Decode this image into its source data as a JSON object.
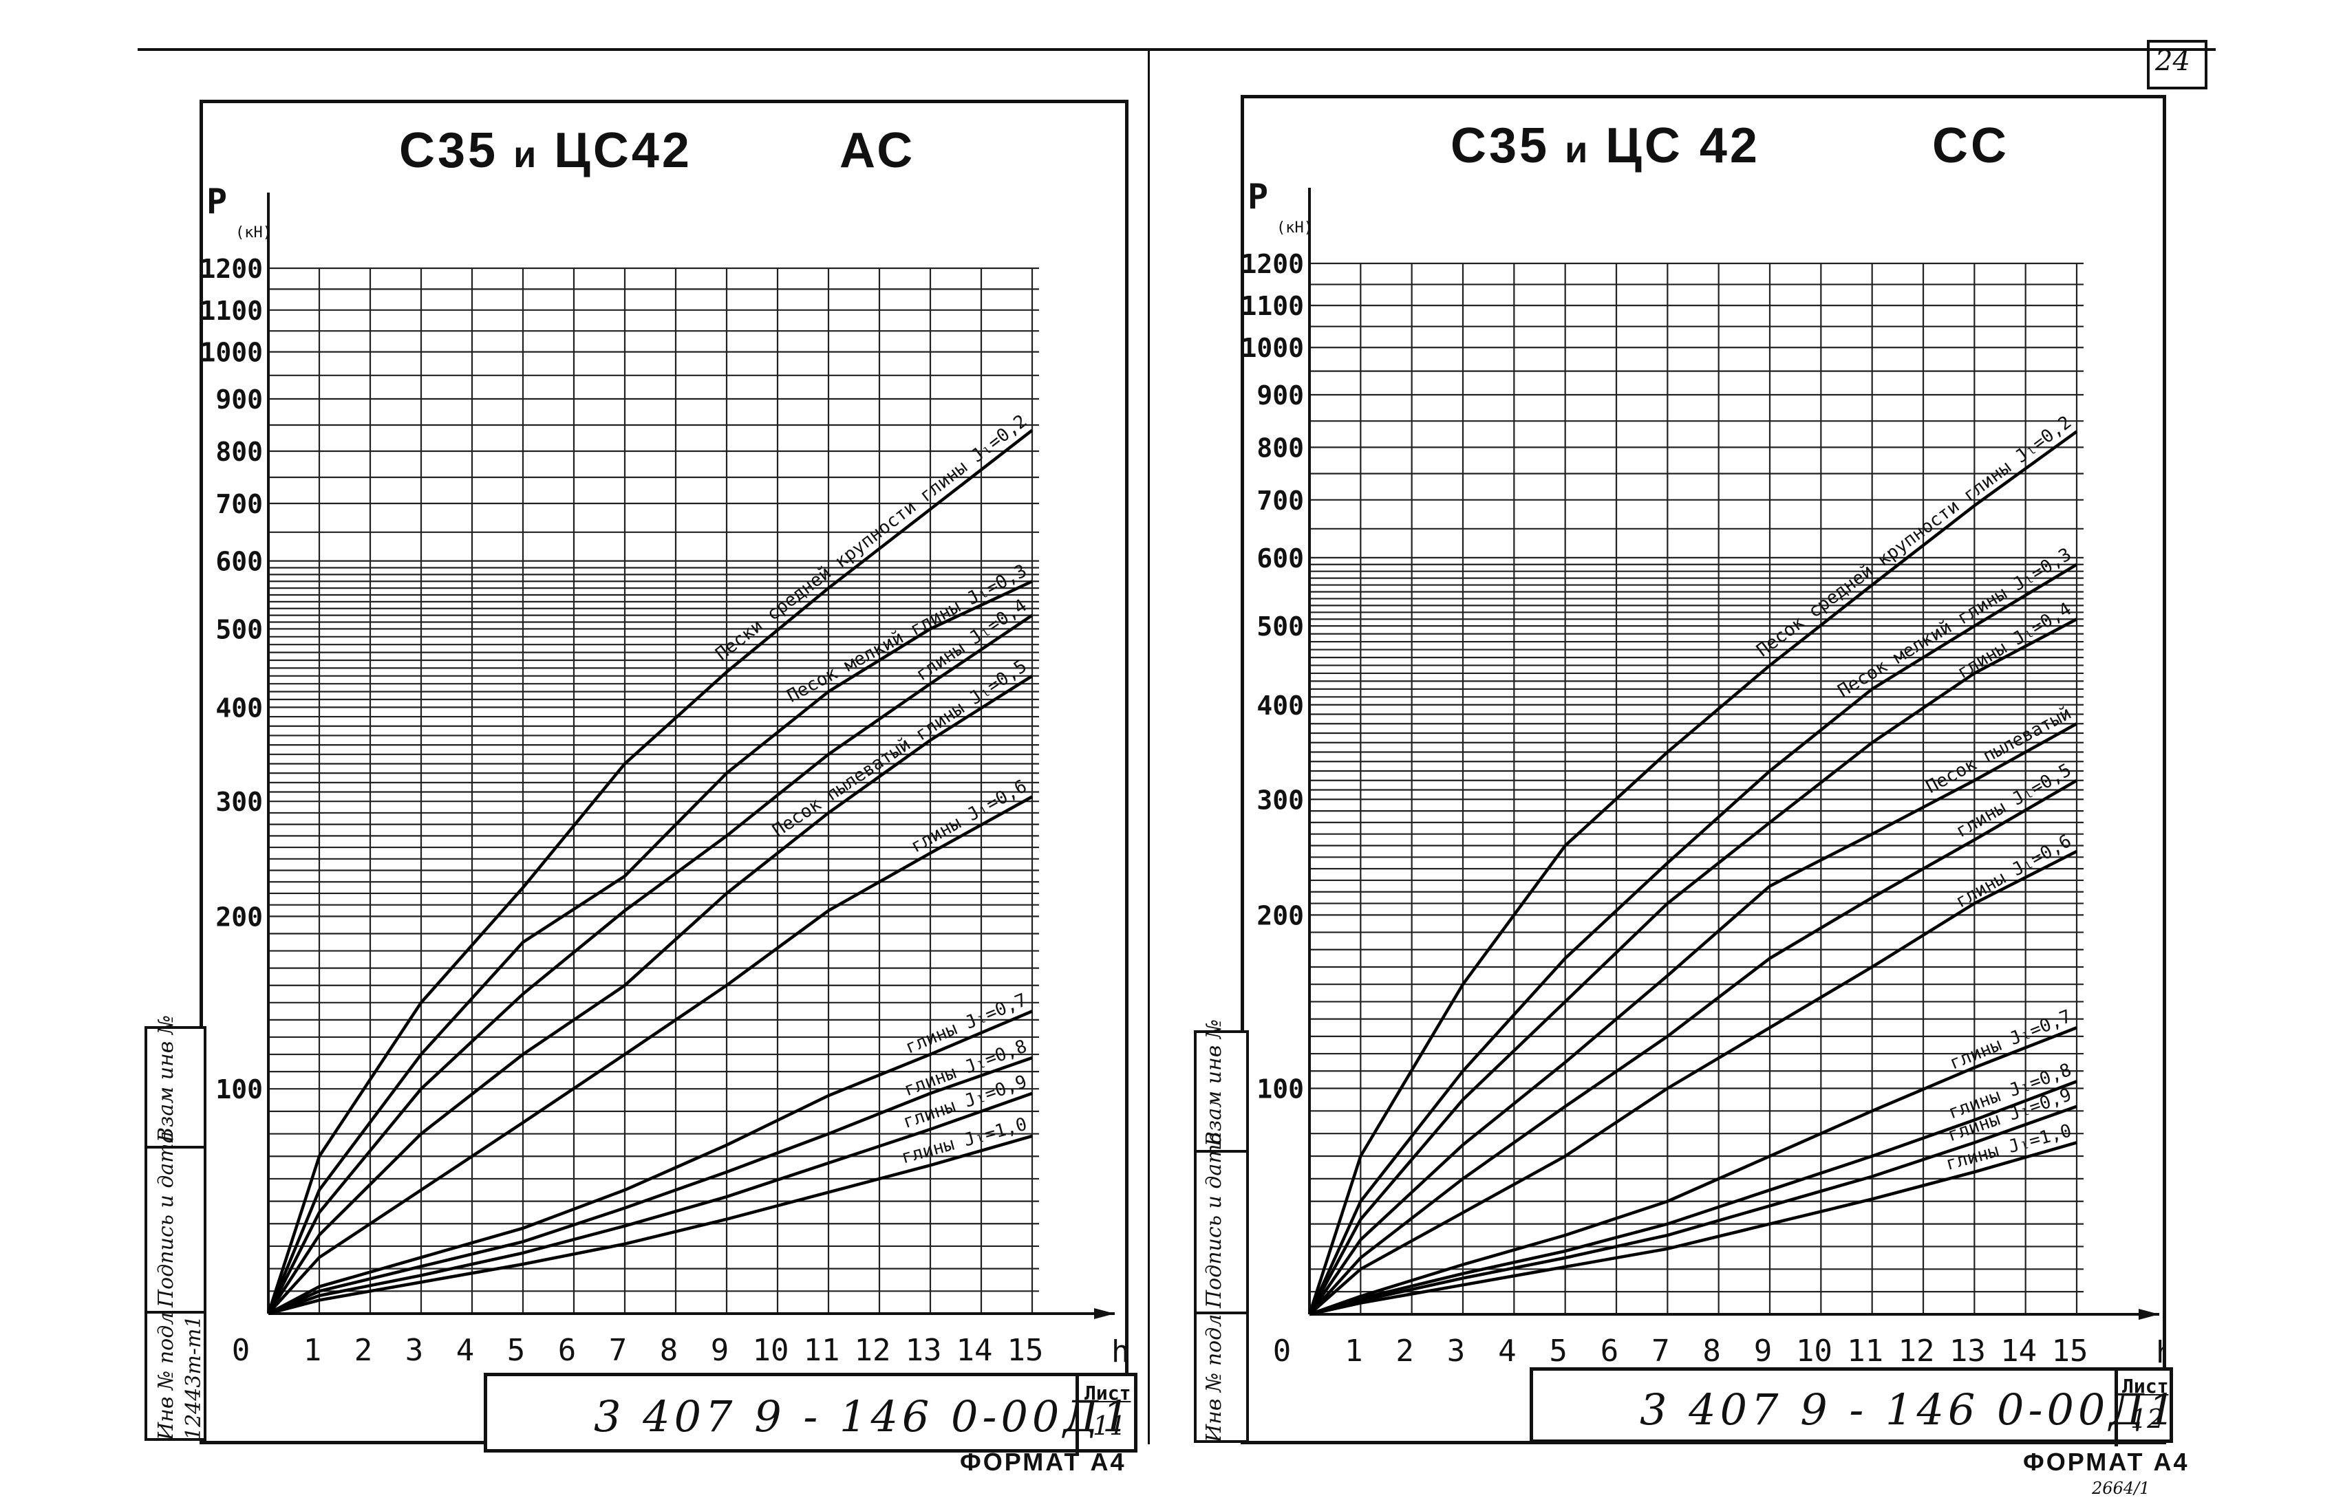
{
  "page": {
    "number": "24",
    "footnote": "2664/1"
  },
  "sheets": [
    {
      "title_main": "С35",
      "title_and": "и",
      "title_second": "ЦС42",
      "title_type": "АС",
      "code": "3 407 9 - 146 0-00Д1",
      "sheet_label": "Лист",
      "sheet_number": "11",
      "format_label": "ФОРМАТ А4",
      "sidebar": {
        "inv_orig": "Инв № подл",
        "inv_number": "12443т-т1",
        "sign_date": "Подпись и дата",
        "inst_inv": "Взам инв №"
      }
    },
    {
      "title_main": "С35",
      "title_and": "и",
      "title_second": "ЦС 42",
      "title_type": "СС",
      "code": "3 407 9 - 146 0-00Д1",
      "sheet_label": "Лист",
      "sheet_number": "12",
      "format_label": "ФОРМАТ А4",
      "sidebar": {
        "inv_orig": "Инв № подл",
        "inv_number": "",
        "sign_date": "Подпись и дата",
        "inst_inv": "Взам инв №"
      }
    }
  ],
  "chart_data": [
    {
      "type": "line",
      "title": "С35 и ЦС42 АС",
      "xlabel": "h(м)",
      "ylabel": "P (кН)",
      "xlim": [
        0,
        15
      ],
      "ylim": [
        0,
        1200
      ],
      "x_ticks": [
        "0",
        "1",
        "2",
        "3",
        "4",
        "5",
        "6",
        "7",
        "8",
        "9",
        "10",
        "11",
        "12",
        "13",
        "14",
        "15"
      ],
      "y_ticks": [
        {
          "label": "100",
          "value": 100
        },
        {
          "label": "200",
          "value": 200
        },
        {
          "label": "300",
          "value": 300
        },
        {
          "label": "400",
          "value": 400
        },
        {
          "label": "500",
          "value": 500
        },
        {
          "label": "600",
          "value": 600
        },
        {
          "label": "700",
          "value": 700
        },
        {
          "label": "800",
          "value": 800
        },
        {
          "label": "900",
          "value": 900
        },
        {
          "label": "1000",
          "value": 1000
        },
        {
          "label": "1100",
          "value": 1100
        },
        {
          "label": "1200",
          "value": 1200
        }
      ],
      "y_scale": "nonlinear",
      "y_map": [
        [
          0,
          0
        ],
        [
          100,
          0.215
        ],
        [
          200,
          0.38
        ],
        [
          300,
          0.49
        ],
        [
          400,
          0.58
        ],
        [
          500,
          0.655
        ],
        [
          600,
          0.72
        ],
        [
          700,
          0.775
        ],
        [
          800,
          0.825
        ],
        [
          900,
          0.875
        ],
        [
          1000,
          0.92
        ],
        [
          1100,
          0.96
        ],
        [
          1200,
          1.0
        ]
      ],
      "series": [
        {
          "name": "Пески средней крупности   глины Jₗ=0,2",
          "x": [
            0,
            1,
            3,
            5,
            7,
            9,
            11,
            13,
            15
          ],
          "y": [
            0,
            70,
            150,
            225,
            340,
            445,
            560,
            690,
            840
          ]
        },
        {
          "name": "Песок мелкий   глины Jₗ=0,3",
          "x": [
            0,
            1,
            3,
            5,
            7,
            9,
            11,
            13,
            15
          ],
          "y": [
            0,
            55,
            120,
            185,
            235,
            330,
            420,
            500,
            570
          ]
        },
        {
          "name": "глины Jₗ=0,4",
          "x": [
            0,
            1,
            3,
            5,
            7,
            9,
            11,
            13,
            15
          ],
          "y": [
            0,
            45,
            100,
            155,
            205,
            270,
            350,
            430,
            520
          ]
        },
        {
          "name": "Песок пылеватый   глины Jₗ=0,5",
          "x": [
            0,
            1,
            3,
            5,
            7,
            9,
            11,
            13,
            15
          ],
          "y": [
            0,
            35,
            80,
            120,
            160,
            220,
            290,
            365,
            440
          ]
        },
        {
          "name": "глины Jₗ=0,6",
          "x": [
            0,
            1,
            3,
            5,
            7,
            9,
            11,
            13,
            15
          ],
          "y": [
            0,
            25,
            55,
            85,
            120,
            160,
            205,
            255,
            305
          ]
        },
        {
          "name": "глины Jₗ=0,7",
          "x": [
            0,
            1,
            3,
            5,
            7,
            9,
            11,
            13,
            15
          ],
          "y": [
            0,
            12,
            25,
            38,
            55,
            75,
            97,
            120,
            145
          ]
        },
        {
          "name": "глины Jₗ=0,8",
          "x": [
            0,
            1,
            3,
            5,
            7,
            9,
            11,
            13,
            15
          ],
          "y": [
            0,
            10,
            21,
            32,
            47,
            63,
            80,
            98,
            118
          ]
        },
        {
          "name": "глины Jₗ=0,9",
          "x": [
            0,
            1,
            3,
            5,
            7,
            9,
            11,
            13,
            15
          ],
          "y": [
            0,
            8,
            17,
            27,
            39,
            52,
            67,
            82,
            98
          ]
        },
        {
          "name": "глины Jₗ=1,0",
          "x": [
            0,
            1,
            3,
            5,
            7,
            9,
            11,
            13,
            15
          ],
          "y": [
            0,
            6,
            14,
            22,
            31,
            42,
            54,
            66,
            79
          ]
        }
      ]
    },
    {
      "type": "line",
      "title": "С35 и ЦС 42 СС",
      "xlabel": "h(м)",
      "ylabel": "P (кН)",
      "xlim": [
        0,
        15
      ],
      "ylim": [
        0,
        1200
      ],
      "x_ticks": [
        "0",
        "1",
        "2",
        "3",
        "4",
        "5",
        "6",
        "7",
        "8",
        "9",
        "10",
        "11",
        "12",
        "13",
        "14",
        "15"
      ],
      "y_ticks": [
        {
          "label": "100",
          "value": 100
        },
        {
          "label": "200",
          "value": 200
        },
        {
          "label": "300",
          "value": 300
        },
        {
          "label": "400",
          "value": 400
        },
        {
          "label": "500",
          "value": 500
        },
        {
          "label": "600",
          "value": 600
        },
        {
          "label": "700",
          "value": 700
        },
        {
          "label": "800",
          "value": 800
        },
        {
          "label": "900",
          "value": 900
        },
        {
          "label": "1000",
          "value": 1000
        },
        {
          "label": "1100",
          "value": 1100
        },
        {
          "label": "1200",
          "value": 1200
        }
      ],
      "y_scale": "nonlinear",
      "y_map": [
        [
          0,
          0
        ],
        [
          100,
          0.215
        ],
        [
          200,
          0.38
        ],
        [
          300,
          0.49
        ],
        [
          400,
          0.58
        ],
        [
          500,
          0.655
        ],
        [
          600,
          0.72
        ],
        [
          700,
          0.775
        ],
        [
          800,
          0.825
        ],
        [
          900,
          0.875
        ],
        [
          1000,
          0.92
        ],
        [
          1100,
          0.96
        ],
        [
          1200,
          1.0
        ]
      ],
      "series": [
        {
          "name": "Песок средней крупности   глины Jₗ=0,2",
          "x": [
            0,
            1,
            3,
            5,
            7,
            9,
            11,
            13,
            15
          ],
          "y": [
            0,
            70,
            160,
            260,
            350,
            450,
            560,
            690,
            830
          ]
        },
        {
          "name": "Песок мелкий   глины Jₗ=0,3",
          "x": [
            0,
            1,
            3,
            5,
            7,
            9,
            11,
            13,
            15
          ],
          "y": [
            0,
            50,
            110,
            175,
            245,
            330,
            420,
            500,
            590
          ]
        },
        {
          "name": "глины Jₗ=0,4",
          "x": [
            0,
            1,
            3,
            5,
            7,
            9,
            11,
            13,
            15
          ],
          "y": [
            0,
            42,
            95,
            150,
            210,
            280,
            360,
            440,
            510
          ]
        },
        {
          "name": "Песок пылеватый",
          "x": [
            0,
            1,
            3,
            5,
            7,
            9,
            11,
            13,
            15
          ],
          "y": [
            0,
            33,
            75,
            115,
            165,
            225,
            270,
            320,
            380
          ]
        },
        {
          "name": "глины Jₗ=0,5",
          "x": [
            0,
            1,
            3,
            5,
            7,
            9,
            11,
            13,
            15
          ],
          "y": [
            0,
            25,
            60,
            92,
            130,
            175,
            215,
            265,
            320
          ]
        },
        {
          "name": "глины Jₗ=0,6",
          "x": [
            0,
            1,
            3,
            5,
            7,
            9,
            11,
            13,
            15
          ],
          "y": [
            0,
            20,
            45,
            70,
            100,
            135,
            170,
            210,
            255
          ]
        },
        {
          "name": "глины Jₗ=0,7",
          "x": [
            0,
            1,
            3,
            5,
            7,
            9,
            11,
            13,
            15
          ],
          "y": [
            0,
            8,
            22,
            35,
            50,
            70,
            90,
            112,
            135
          ]
        },
        {
          "name": "глины Jₗ=0,8",
          "x": [
            0,
            1,
            3,
            5,
            7,
            9,
            11,
            13,
            15
          ],
          "y": [
            0,
            7,
            18,
            28,
            40,
            55,
            70,
            86,
            104
          ]
        },
        {
          "name": "глины Jₗ=0,9",
          "x": [
            0,
            1,
            3,
            5,
            7,
            9,
            11,
            13,
            15
          ],
          "y": [
            0,
            6,
            16,
            25,
            35,
            48,
            61,
            76,
            92
          ]
        },
        {
          "name": "глины Jₗ=1,0",
          "x": [
            0,
            1,
            3,
            5,
            7,
            9,
            11,
            13,
            15
          ],
          "y": [
            0,
            5,
            13,
            21,
            29,
            40,
            51,
            63,
            76
          ]
        }
      ]
    }
  ]
}
